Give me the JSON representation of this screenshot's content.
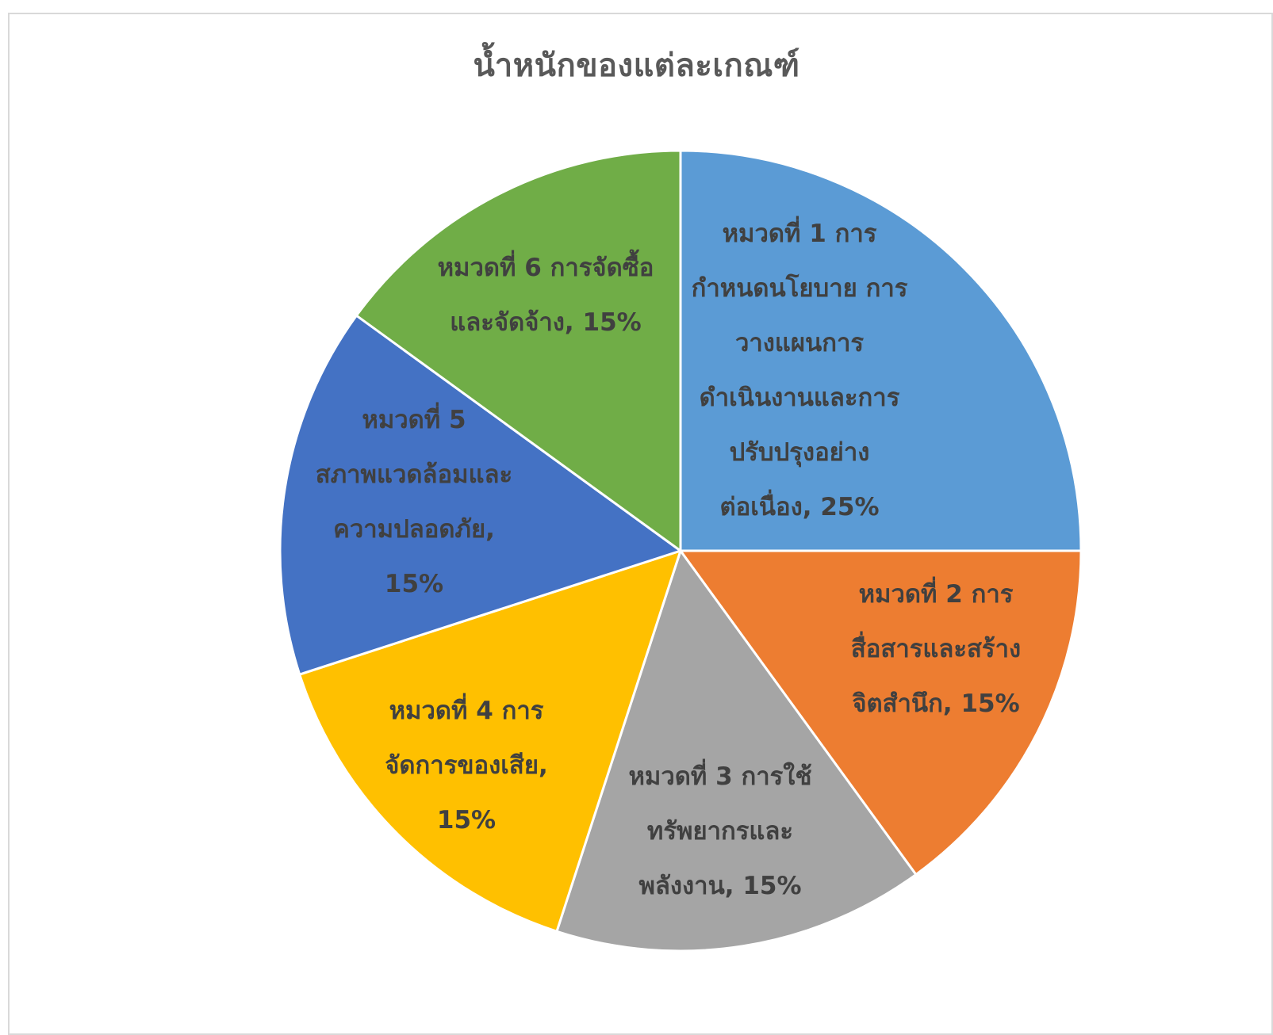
{
  "chart_data": {
    "type": "pie",
    "title": "น้ำหนักของแต่ละเกณฑ์",
    "slices": [
      {
        "name": "หมวดที่ 1 การกำหนดนโยบาย การวางแผนการดำเนินงานและการปรับปรุงอย่างต่อเนื่อง",
        "value": 25,
        "color": "#5B9BD5",
        "label_lines": [
          "หมวดที่ 1 การ",
          "กำหนดนโยบาย การ",
          "วางแผนการ",
          "ดำเนินงานและการ",
          "ปรับปรุงอย่าง",
          "ต่อเนื่อง, 25%"
        ]
      },
      {
        "name": "หมวดที่ 2 การสื่อสารและสร้างจิตสำนึก",
        "value": 15,
        "color": "#ED7D31",
        "label_lines": [
          "หมวดที่ 2 การ",
          "สื่อสารและสร้าง",
          "จิตสำนึก, 15%"
        ]
      },
      {
        "name": "หมวดที่ 3 การใช้ทรัพยากรและพลังงาน",
        "value": 15,
        "color": "#A5A5A5",
        "label_lines": [
          "หมวดที่ 3 การใช้",
          "ทรัพยากรและ",
          "พลังงาน, 15%"
        ]
      },
      {
        "name": "หมวดที่ 4 การจัดการของเสีย",
        "value": 15,
        "color": "#FFC000",
        "label_lines": [
          "หมวดที่ 4 การ",
          "จัดการของเสีย,",
          "15%"
        ]
      },
      {
        "name": "หมวดที่ 5 สภาพแวดล้อมและความปลอดภัย",
        "value": 15,
        "color": "#4472C4",
        "label_lines": [
          "หมวดที่ 5",
          "สภาพแวดล้อมและ",
          "ความปลอดภัย,",
          "15%"
        ]
      },
      {
        "name": "หมวดที่ 6 การจัดซื้อและจัดจ้าง",
        "value": 15,
        "color": "#70AD47",
        "label_lines": [
          "หมวดที่ 6 การจัดซื้อ",
          "และจัดจ้าง, 15%"
        ]
      }
    ]
  }
}
